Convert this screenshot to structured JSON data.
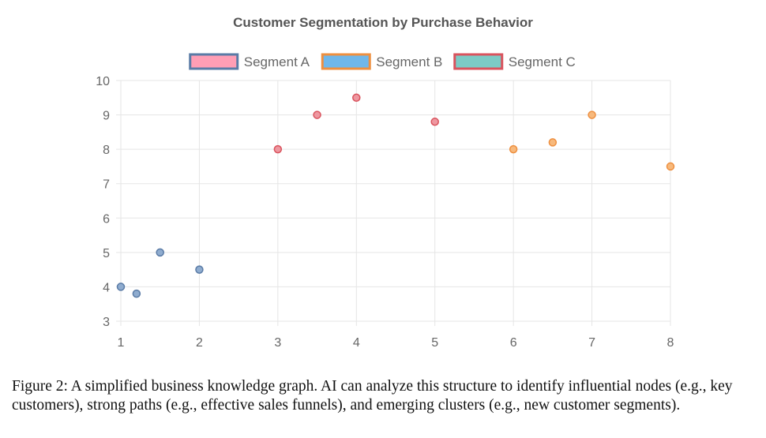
{
  "chart_data": {
    "type": "scatter",
    "title": "Customer Segmentation by Purchase Behavior",
    "xlabel": "",
    "ylabel": "",
    "xlim": [
      1,
      8
    ],
    "ylim": [
      3,
      10
    ],
    "x_ticks": [
      1,
      2,
      3,
      4,
      5,
      6,
      7,
      8
    ],
    "y_ticks": [
      3,
      4,
      5,
      6,
      7,
      8,
      9,
      10
    ],
    "grid": true,
    "legend_position": "top-center",
    "legend": [
      {
        "name": "Segment A",
        "fill": "#ff9eb5",
        "border": "#5a7ba6"
      },
      {
        "name": "Segment B",
        "fill": "#6fb7ea",
        "border": "#ee8f3f"
      },
      {
        "name": "Segment C",
        "fill": "#7ccbc6",
        "border": "#d9535d"
      }
    ],
    "series": [
      {
        "name": "Segment A",
        "point_fill": "#8faccf",
        "point_border": "#5a7ba6",
        "points": [
          {
            "x": 1,
            "y": 4
          },
          {
            "x": 1.2,
            "y": 3.8
          },
          {
            "x": 1.5,
            "y": 5
          },
          {
            "x": 2,
            "y": 4.5
          }
        ]
      },
      {
        "name": "Segment B",
        "point_fill": "#f7b97c",
        "point_border": "#ee8f3f",
        "points": [
          {
            "x": 6,
            "y": 8
          },
          {
            "x": 6.5,
            "y": 8.2
          },
          {
            "x": 7,
            "y": 9
          },
          {
            "x": 8,
            "y": 7.5
          }
        ]
      },
      {
        "name": "Segment C",
        "point_fill": "#ee97a0",
        "point_border": "#d9535d",
        "points": [
          {
            "x": 3,
            "y": 8
          },
          {
            "x": 3.5,
            "y": 9
          },
          {
            "x": 4,
            "y": 9.5
          },
          {
            "x": 5,
            "y": 8.8
          }
        ]
      }
    ]
  },
  "caption": "Figure 2: A simplified business knowledge graph. AI can analyze this structure to identify influential nodes (e.g., key customers), strong paths (e.g., effective sales funnels), and emerging clusters (e.g., new customer segments)."
}
